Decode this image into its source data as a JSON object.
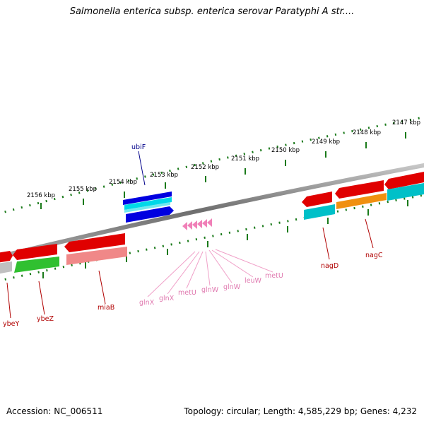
{
  "title": "Salmonella enterica subsp. enterica serovar Paratyphi A str....",
  "footer": {
    "accession": "Accession: NC_006511",
    "topology": "Topology: circular; Length: 4,585,229 bp; Genes: 4,232"
  },
  "kbp_labels": [
    "2156 kbp",
    "2155 kbp",
    "2154 kbp",
    "2153 kbp",
    "2152 kbp",
    "2151 kbp",
    "2150 kbp",
    "2149 kbp",
    "2148 kbp",
    "2147 kbp"
  ],
  "genes": {
    "forward": [
      "ubiF"
    ],
    "reverse": [
      "ybeY",
      "ybeZ",
      "miaB",
      "nagD",
      "nagC"
    ],
    "rna": [
      "glnX",
      "glnX",
      "metU",
      "glnW",
      "glnW",
      "leuW",
      "metU"
    ]
  },
  "colors": {
    "backbone": "#7a7a7a",
    "ticks": "#1a7a1a",
    "cds_red": "#e00000",
    "cds_blue": "#0000e0",
    "cyan": "#00c0c8",
    "green": "#30c030",
    "orange": "#f09010",
    "rna_pink": "#f080b8",
    "label_red": "#b00000",
    "label_blue": "#00008a",
    "label_pink": "#e07ab0"
  }
}
